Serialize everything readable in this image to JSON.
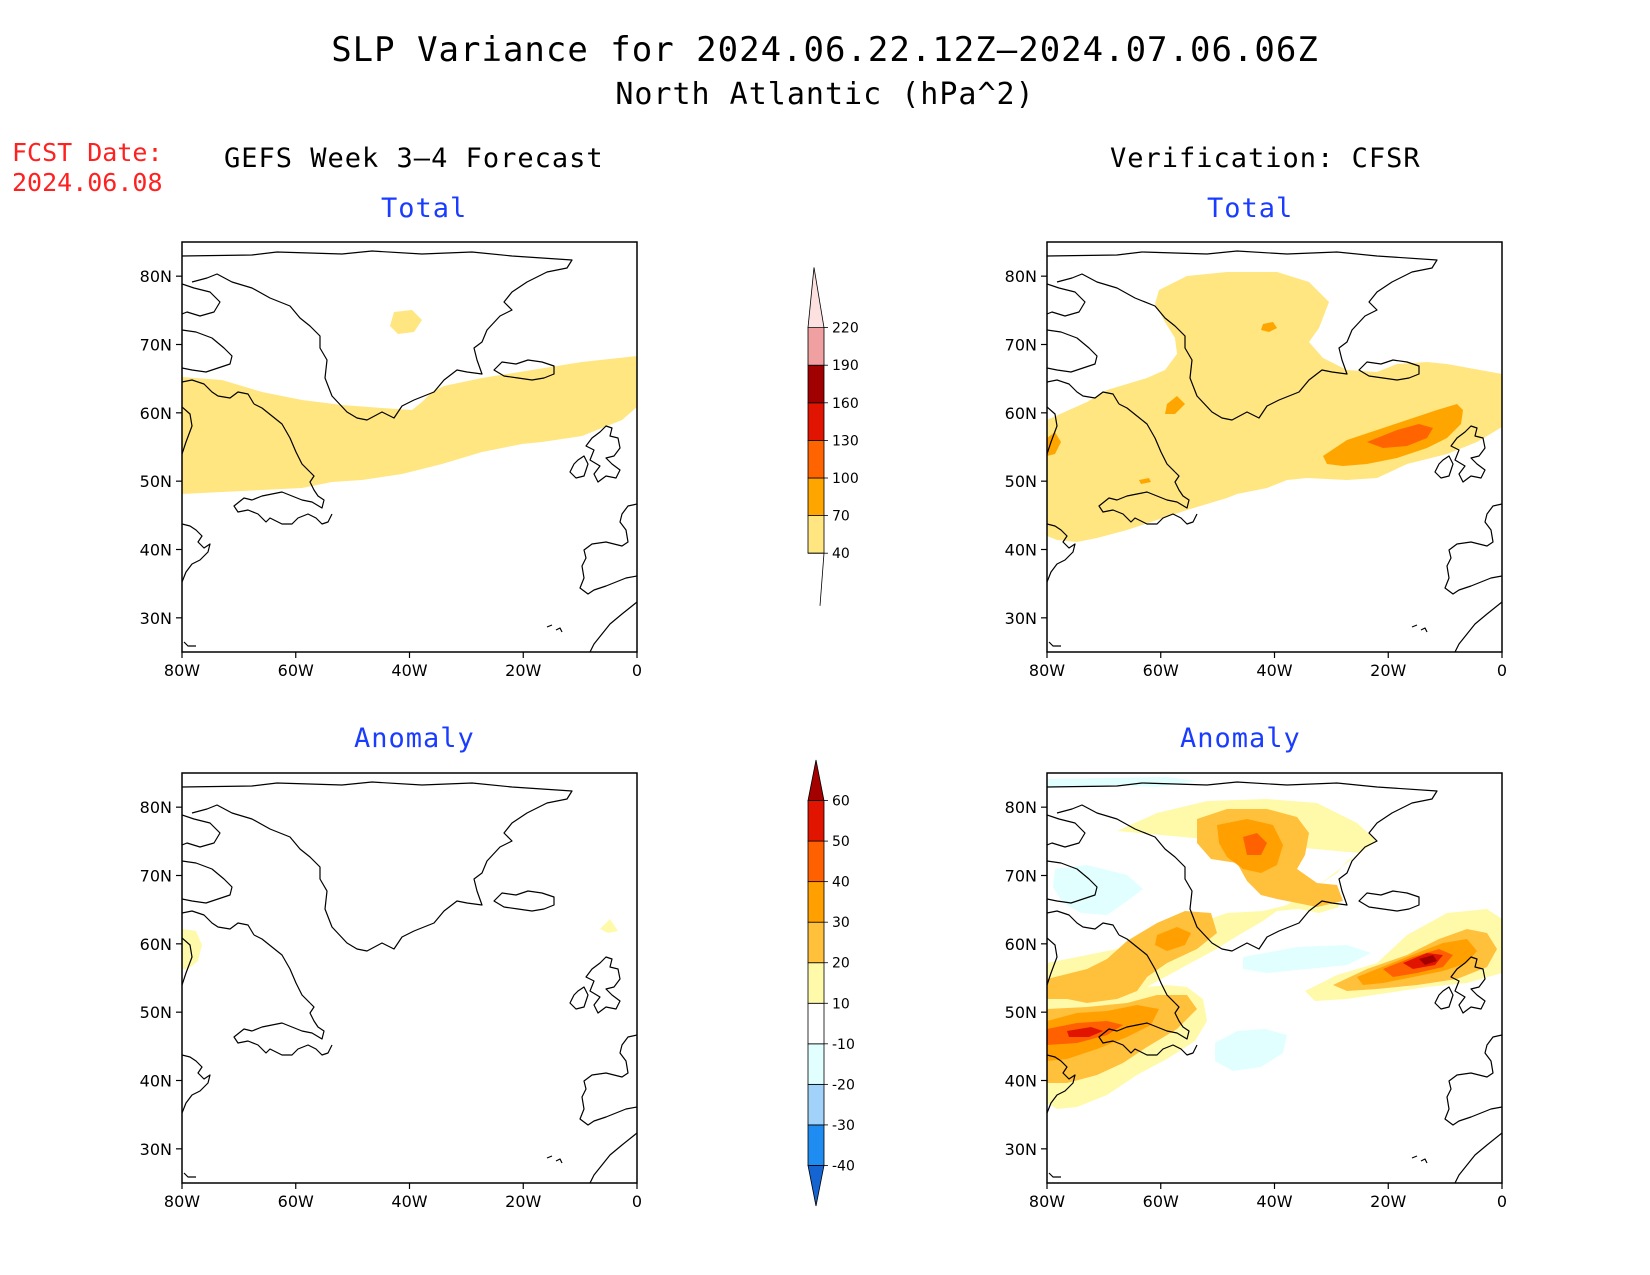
{
  "title": {
    "line1": "SLP Variance for 2024.06.22.12Z–2024.07.06.06Z",
    "line2": "North Atlantic (hPa^2)"
  },
  "fcst_date": {
    "label": "FCST Date:",
    "value": "2024.06.08"
  },
  "columns": {
    "left": "GEFS Week 3–4 Forecast",
    "right": "Verification: CFSR"
  },
  "subtitles": {
    "total": "Total",
    "anomaly": "Anomaly"
  },
  "axes": {
    "lon_labels": [
      "80W",
      "60W",
      "40W",
      "20W",
      "0"
    ],
    "lat_labels": [
      "30N",
      "40N",
      "50N",
      "60N",
      "70N",
      "80N"
    ],
    "lon_range": [
      -80,
      0
    ],
    "lat_range": [
      25,
      85
    ]
  },
  "colorbars": {
    "total": {
      "levels": [
        "40",
        "70",
        "100",
        "130",
        "160",
        "190",
        "220"
      ],
      "colors": [
        "#ffe680",
        "#ffa500",
        "#ff6400",
        "#e01400",
        "#a00000",
        "#f0a0a0",
        "#fde0e0"
      ]
    },
    "anomaly": {
      "levels": [
        "-40",
        "-30",
        "-20",
        "-10",
        "10",
        "20",
        "30",
        "40",
        "50",
        "60"
      ],
      "colors": [
        "#1464d2",
        "#1e8cf0",
        "#a0d2fa",
        "#e1ffff",
        "#ffffff",
        "#fffaaa",
        "#ffc03c",
        "#ffa000",
        "#ff6000",
        "#e11400",
        "#a50000"
      ]
    }
  },
  "colors": {
    "title": "#000000",
    "subtitle": "#1a3cff",
    "fcst": "#ff2020"
  }
}
